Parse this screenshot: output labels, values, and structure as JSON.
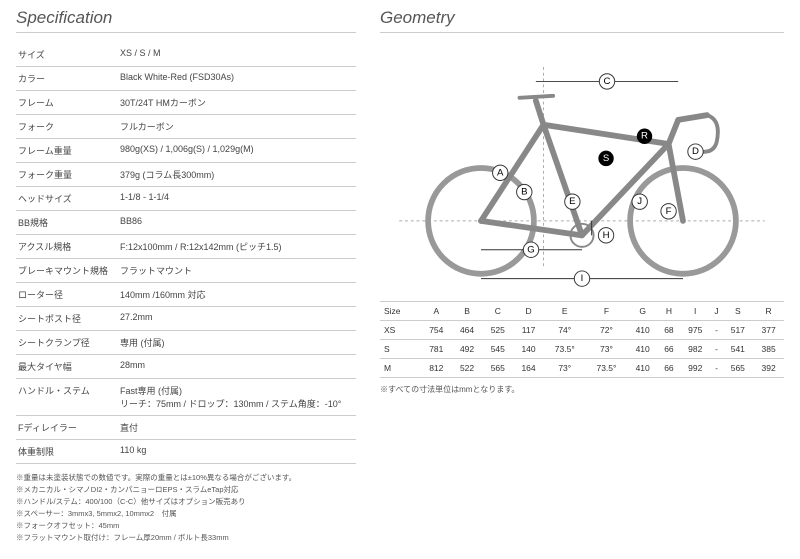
{
  "spec": {
    "heading": "Specification",
    "rows": [
      {
        "label": "サイズ",
        "value": "XS / S / M"
      },
      {
        "label": "カラー",
        "value": "Black White-Red (FSD30As)"
      },
      {
        "label": "フレーム",
        "value": "30T/24T HMカーボン"
      },
      {
        "label": "フォーク",
        "value": "フルカーボン"
      },
      {
        "label": "フレーム重量",
        "value": "980g(XS) / 1,006g(S) / 1,029g(M)"
      },
      {
        "label": "フォーク重量",
        "value": "379g (コラム長300mm)"
      },
      {
        "label": "ヘッドサイズ",
        "value": "1-1/8 - 1-1/4"
      },
      {
        "label": "BB規格",
        "value": "BB86"
      },
      {
        "label": "アクスル規格",
        "value": "F:12x100mm / R:12x142mm (ピッチ1.5)"
      },
      {
        "label": "ブレーキマウント規格",
        "value": "フラットマウント"
      },
      {
        "label": "ローター径",
        "value": "140mm /160mm 対応"
      },
      {
        "label": "シートポスト径",
        "value": "27.2mm"
      },
      {
        "label": "シートクランプ径",
        "value": "専用 (付属)"
      },
      {
        "label": "最大タイヤ幅",
        "value": "28mm"
      },
      {
        "label": "ハンドル・ステム",
        "value": "Fast専用 (付属)\nリーチ：75mm / ドロップ：130mm / ステム角度：-10°"
      },
      {
        "label": "Fディレイラー",
        "value": "直付"
      },
      {
        "label": "体重制限",
        "value": "110 kg"
      }
    ],
    "notes": [
      "※重量は未塗装状態での数値です。実際の重量とは±10%異なる場合がございます。",
      "※メカニカル・シマノDI2・カンパニョーロEPS・スラムeTap対応",
      "※ハンドル/ステム：400/100（C-C）他サイズはオプション販売あり",
      "※スペーサー：3mmx3, 5mmx2, 10mmx2　付属",
      "※フォークオフセット：45mm",
      "※フラットマウント取付け：フレーム厚20mm / ボルト長33mm"
    ]
  },
  "geo": {
    "heading": "Geometry",
    "table": {
      "columns": [
        "Size",
        "A",
        "B",
        "C",
        "D",
        "E",
        "F",
        "G",
        "H",
        "I",
        "J",
        "S",
        "R"
      ],
      "rows": [
        [
          "XS",
          "754",
          "464",
          "525",
          "117",
          "74°",
          "72°",
          "410",
          "68",
          "975",
          "-",
          "517",
          "377"
        ],
        [
          "S",
          "781",
          "492",
          "545",
          "140",
          "73.5°",
          "73°",
          "410",
          "66",
          "982",
          "-",
          "541",
          "385"
        ],
        [
          "M",
          "812",
          "522",
          "565",
          "164",
          "73°",
          "73.5°",
          "410",
          "66",
          "992",
          "-",
          "565",
          "392"
        ]
      ]
    },
    "note": "※すべての寸法単位はmmとなります。",
    "diagram": {
      "labels": [
        "A",
        "B",
        "C",
        "D",
        "E",
        "F",
        "G",
        "H",
        "I",
        "J",
        "S",
        "R"
      ],
      "bike_color": "#888888",
      "line_color": "#333333",
      "dash_color": "#aaaaaa",
      "label_bg": "#333333",
      "label_r_bg": "#000000",
      "label_s_bg": "#000000"
    }
  }
}
